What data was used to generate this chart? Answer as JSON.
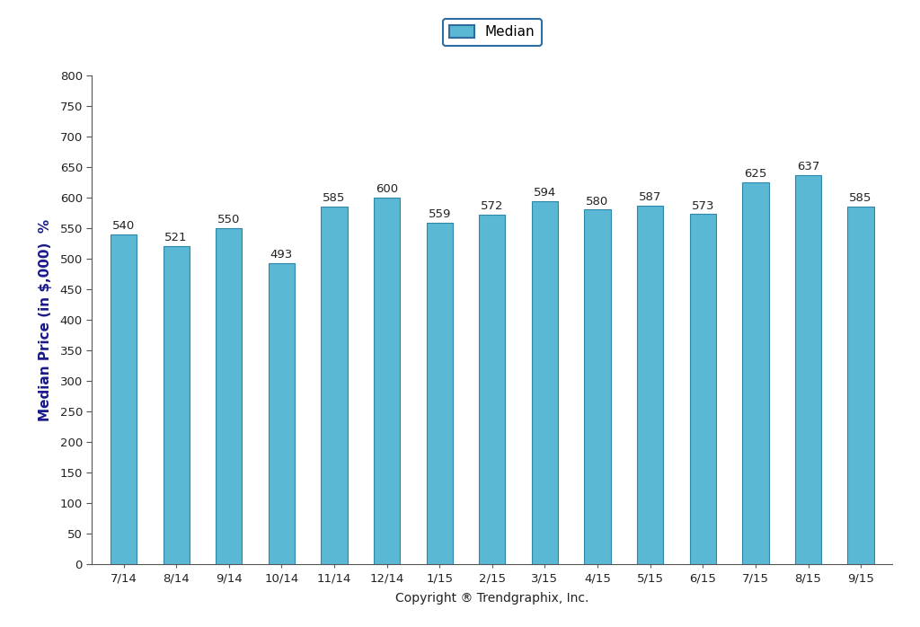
{
  "categories": [
    "7/14",
    "8/14",
    "9/14",
    "10/14",
    "11/14",
    "12/14",
    "1/15",
    "2/15",
    "3/15",
    "4/15",
    "5/15",
    "6/15",
    "7/15",
    "8/15",
    "9/15"
  ],
  "values": [
    540,
    521,
    550,
    493,
    585,
    600,
    559,
    572,
    594,
    580,
    587,
    573,
    625,
    637,
    585
  ],
  "bar_color": "#5BB8D4",
  "bar_edge_color": "#2E86AB",
  "ylabel": "Median Price (in $,000)  %",
  "xlabel": "Copyright ® Trendgraphix, Inc.",
  "ylim": [
    0,
    800
  ],
  "yticks": [
    0,
    50,
    100,
    150,
    200,
    250,
    300,
    350,
    400,
    450,
    500,
    550,
    600,
    650,
    700,
    750,
    800
  ],
  "legend_label": "Median",
  "legend_facecolor": "#5BB8D4",
  "legend_edgecolor": "#2E6B9E",
  "background_color": "#FFFFFF",
  "label_fontsize": 9.5,
  "axis_label_fontsize": 11,
  "tick_fontsize": 9.5,
  "bar_width": 0.5
}
